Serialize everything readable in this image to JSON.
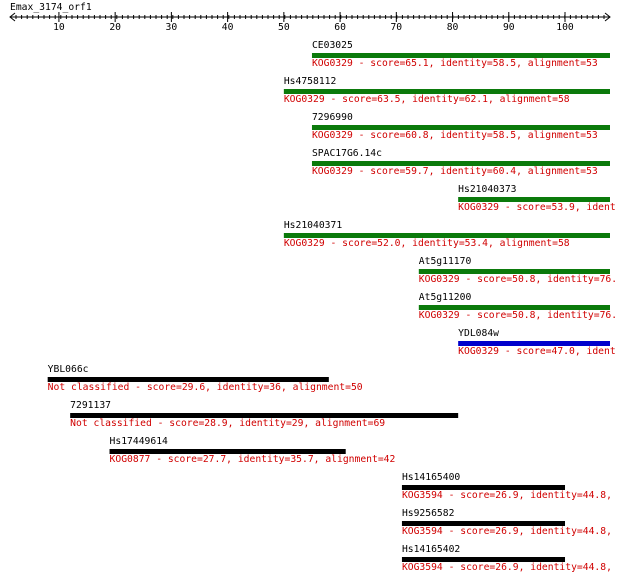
{
  "title": "Emax_3174_orf1",
  "ruler": {
    "xlim": [
      1.3,
      108
    ],
    "xticks": [
      10,
      20,
      30,
      40,
      50,
      60,
      70,
      80,
      90,
      100
    ]
  },
  "hits": [
    {
      "name": "CE03025",
      "label": "KOG0329 - score=65.1, identity=58.5, alignment=53",
      "start": 55,
      "end": 108,
      "color": "#0b7a0b"
    },
    {
      "name": "Hs4758112",
      "label": "KOG0329 - score=63.5, identity=62.1, alignment=58",
      "start": 50,
      "end": 108,
      "color": "#0b7a0b"
    },
    {
      "name": "7296990",
      "label": "KOG0329 - score=60.8, identity=58.5, alignment=53",
      "start": 55,
      "end": 108,
      "color": "#0b7a0b"
    },
    {
      "name": "SPAC17G6.14c",
      "label": "KOG0329 - score=59.7, identity=60.4, alignment=53",
      "start": 55,
      "end": 108,
      "color": "#0b7a0b"
    },
    {
      "name": "Hs21040373",
      "label": "KOG0329 - score=53.9, ident",
      "start": 81,
      "end": 108,
      "color": "#0b7a0b"
    },
    {
      "name": "Hs21040371",
      "label": "KOG0329 - score=52.0, identity=53.4, alignment=58",
      "start": 50,
      "end": 108,
      "color": "#0b7a0b"
    },
    {
      "name": "At5g11170",
      "label": "KOG0329 - score=50.8, identity=76.",
      "start": 74,
      "end": 108,
      "color": "#0b7a0b"
    },
    {
      "name": "At5g11200",
      "label": "KOG0329 - score=50.8, identity=76.",
      "start": 74,
      "end": 108,
      "color": "#0b7a0b"
    },
    {
      "name": "YDL084w",
      "label": "KOG0329 - score=47.0, ident",
      "start": 81,
      "end": 108,
      "color": "#0000cc"
    },
    {
      "name": "YBL066c",
      "label": "Not classified - score=29.6, identity=36, alignment=50",
      "start": 8,
      "end": 58,
      "color": "#000000"
    },
    {
      "name": "7291137",
      "label": "Not classified - score=28.9, identity=29, alignment=69",
      "start": 12,
      "end": 81,
      "color": "#000000"
    },
    {
      "name": "Hs17449614",
      "label": "KOG0877 - score=27.7, identity=35.7, alignment=42",
      "start": 19,
      "end": 61,
      "color": "#000000"
    },
    {
      "name": "Hs14165400",
      "label": "KOG3594 - score=26.9, identity=44.8,",
      "start": 71,
      "end": 100,
      "color": "#000000"
    },
    {
      "name": "Hs9256582",
      "label": "KOG3594 - score=26.9, identity=44.8,",
      "start": 71,
      "end": 100,
      "color": "#000000"
    },
    {
      "name": "Hs14165402",
      "label": "KOG3594 - score=26.9, identity=44.8,",
      "start": 71,
      "end": 100,
      "color": "#000000"
    }
  ]
}
